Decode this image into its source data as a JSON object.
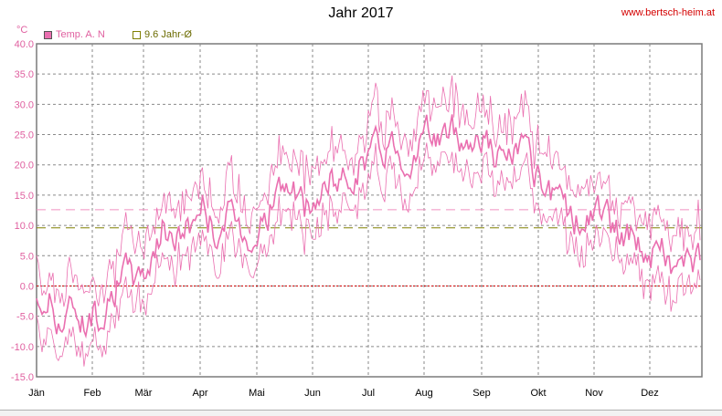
{
  "chart_data": {
    "type": "line",
    "title": "Jahr 2017",
    "site": "www.bertsch-heim.at",
    "y_unit": "°C",
    "ylim": [
      -15,
      40
    ],
    "yticks": [
      "40.0",
      "35.0",
      "30.0",
      "25.0",
      "20.0",
      "15.0",
      "10.0",
      "5.0",
      "0.0",
      "-5.0",
      "-10.0",
      "-15.0"
    ],
    "months": [
      "Jän",
      "Feb",
      "Mär",
      "Apr",
      "Mai",
      "Jun",
      "Jul",
      "Aug",
      "Sep",
      "Okt",
      "Nov",
      "Dez"
    ],
    "grid": true,
    "legend_position": "top-left",
    "legend": [
      {
        "label": "Temp. A. N",
        "color": "#ea6fb0"
      },
      {
        "label": "9.6 Jahr-Ø",
        "color": "#808000"
      }
    ],
    "reference_lines": [
      {
        "value": 9.6,
        "color": "#808000",
        "style": "dashed"
      },
      {
        "value": 12.6,
        "color": "#f090c0",
        "style": "dashed"
      },
      {
        "value": 0,
        "color": "#cc0000",
        "style": "dotted"
      }
    ],
    "series": [
      {
        "name": "Temp. A. N",
        "color": "#ea6fb0",
        "weekly_mean": [
          -4,
          -2,
          -6,
          -3,
          -6,
          -4,
          0,
          2,
          1,
          5,
          10,
          8,
          10,
          14,
          9,
          11,
          10,
          8,
          12,
          16,
          16,
          12,
          14,
          17,
          17,
          20,
          22,
          23,
          24,
          21,
          24,
          25,
          25,
          25,
          24,
          26,
          21,
          21,
          23,
          18,
          14,
          13,
          12,
          10,
          13,
          10,
          8,
          8,
          5,
          6,
          3,
          4,
          3
        ]
      }
    ]
  }
}
